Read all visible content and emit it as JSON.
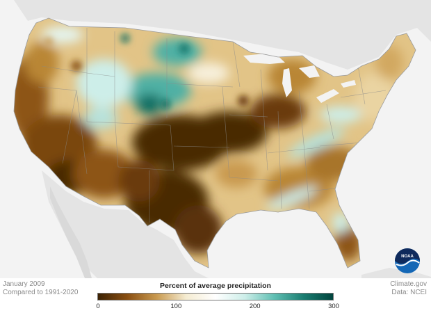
{
  "map": {
    "caption_period": "January 2009",
    "caption_baseline": "Compared to 1991-2020",
    "credit_source": "Climate.gov",
    "credit_data": "Data: NCEI",
    "logo_text": "NOAA"
  },
  "legend": {
    "title": "Percent of average precipitation",
    "ticks": [
      "0",
      "100",
      "200",
      "300"
    ],
    "tick_values": [
      0,
      100,
      200,
      300
    ],
    "range": [
      0,
      300
    ],
    "colors": {
      "stops": [
        "#3c2204",
        "#8a4f12",
        "#c99a50",
        "#f5ecd2",
        "#ffffff",
        "#cdeee9",
        "#5fbfb3",
        "#1a7d71",
        "#00443d"
      ]
    }
  },
  "colors": {
    "very_dry": "#4a2906",
    "dry": "#8d5415",
    "moderately_dry": "#b98636",
    "slightly_dry": "#e2c487",
    "near_normal": "#f7f0dc",
    "wet": "#b7e2dc",
    "very_wet": "#4fb0a4",
    "extremely_wet": "#0f6e63",
    "ocean_land": "#e6e6e6",
    "background": "#f3f3f3",
    "noaa_blue": "#1467b6",
    "noaa_navy": "#0f2a5c"
  }
}
